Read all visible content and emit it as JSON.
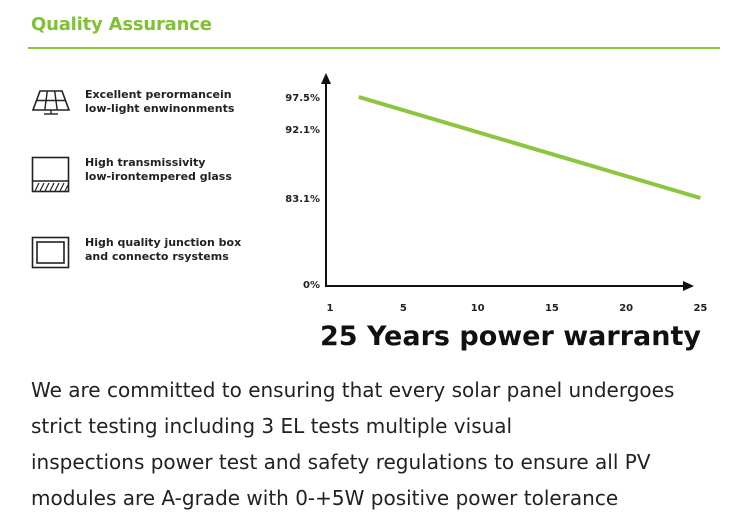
{
  "header": {
    "title": "Quality Assurance"
  },
  "features": [
    {
      "icon": "solar-panel-icon",
      "lines": [
        "Excellent perormancein",
        "low-light enwinonments"
      ]
    },
    {
      "icon": "glass-pane-icon",
      "lines": [
        "High transmissivity",
        "low-irontempered glass"
      ]
    },
    {
      "icon": "junction-box-icon",
      "lines": [
        "High quality junction box",
        "and connecto rsystems"
      ]
    }
  ],
  "chart_data": {
    "type": "line",
    "title": "25 Years power warranty",
    "x_ticks": [
      "1",
      "5",
      "10",
      "15",
      "20",
      "25"
    ],
    "y_ticks": [
      "0%",
      "83.1%",
      "92.1%",
      "97.5%"
    ],
    "series": [
      {
        "name": "Power warranty",
        "x": [
          2,
          25
        ],
        "y": [
          97.5,
          83.1
        ]
      }
    ],
    "xlabel": "",
    "ylabel": "",
    "line_color": "#8cc63f"
  },
  "description": {
    "lines": [
      "We are committed to ensuring that every solar panel undergoes",
      "strict testing including 3 EL tests multiple visual",
      "inspections power test and safety regulations to ensure all PV",
      "modules are A-grade with 0-+5W positive power tolerance"
    ]
  }
}
